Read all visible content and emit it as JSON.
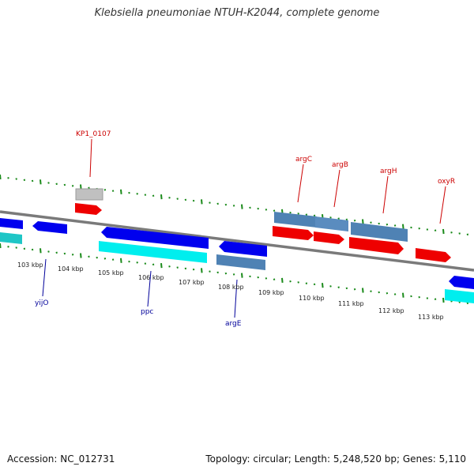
{
  "title": "Klebsiella pneumoniae NTUH-K2044, complete genome",
  "footer": {
    "accession": "Accession: NC_012731",
    "topology": "Topology: circular; Length: 5,248,520 bp; Genes: 5,110"
  },
  "colors": {
    "backbone": "#7a7a7a",
    "tick": "#1a8a1a",
    "forward_cds": "#ff0000",
    "reverse_cds": "#0000ee",
    "forward_gene": "#c0c0c0",
    "reverse_gene": "#00eeee",
    "operon": "#4f82b4",
    "forward_label": "#cc0000",
    "reverse_label": "#00009a"
  },
  "axis_labels": [
    "103 kbp",
    "104 kbp",
    "105 kbp",
    "106 kbp",
    "107 kbp",
    "108 kbp",
    "109 kbp",
    "110 kbp",
    "111 kbp",
    "112 kbp",
    "113 kbp"
  ],
  "forward_labels": [
    "KP1_0107",
    "argC",
    "argB",
    "argH",
    "oxyR"
  ],
  "reverse_labels": [
    "yijO",
    "ppc",
    "argE"
  ]
}
